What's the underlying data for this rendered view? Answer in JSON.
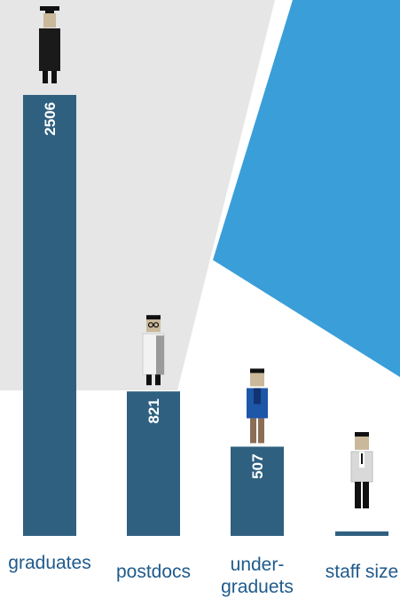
{
  "colors": {
    "bar": "#2f6080",
    "label": "#1f5a8c",
    "background_blue": "#3a9ed8",
    "background_grey": "#e6e6e6"
  },
  "chart_data": {
    "type": "bar",
    "categories": [
      "graduates",
      "postdocs",
      "under-\ngraduets",
      "staff size"
    ],
    "values": [
      2506,
      821,
      507,
      13
    ],
    "figures": [
      "graduate-figure",
      "scientist-figure",
      "student-figure",
      "staff-figure"
    ],
    "title": "",
    "xlabel": "",
    "ylabel": "",
    "grid": false
  }
}
